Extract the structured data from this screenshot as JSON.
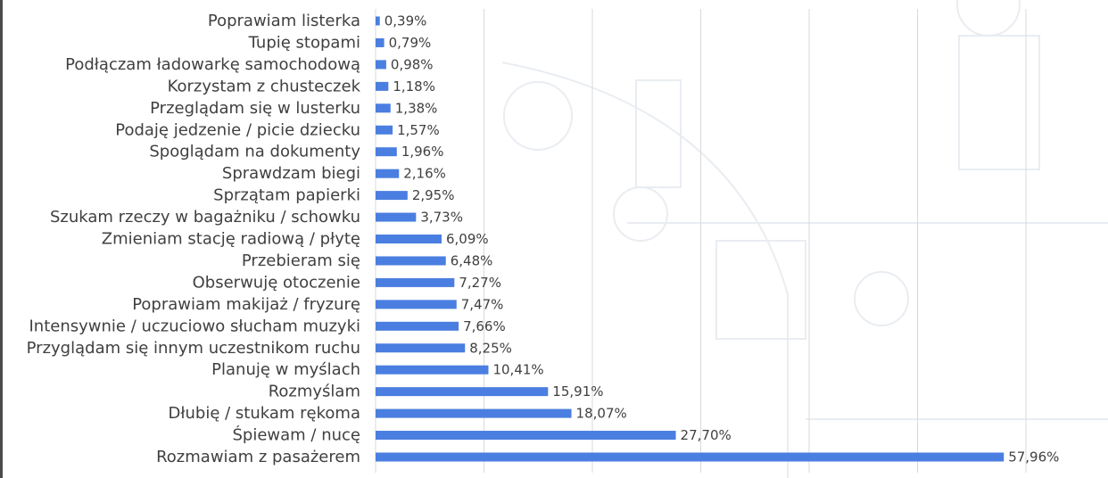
{
  "chart_data": {
    "type": "bar",
    "orientation": "horizontal",
    "categories": [
      "Poprawiam listerka",
      "Tupię stopami",
      "Podłączam ładowarkę samochodową",
      "Korzystam z chusteczek",
      "Przeglądam się w lusterku",
      "Podaję jedzenie / picie dziecku",
      "Spoglądam na dokumenty",
      "Sprawdzam biegi",
      "Sprzątam papierki",
      "Szukam rzeczy w bagażniku / schowku",
      "Zmieniam stację radiową / płytę",
      "Przebieram się",
      "Obserwuję otoczenie",
      "Poprawiam makijaż / fryzurę",
      "Intensywnie / uczuciowo słucham muzyki",
      "Przyglądam się innym uczestnikom ruchu",
      "Planuję w myślach",
      "Rozmyślam",
      "Dłubię / stukam rękoma",
      "Śpiewam / nucę",
      "Rozmawiam z pasażerem"
    ],
    "values": [
      0.39,
      0.79,
      0.98,
      1.18,
      1.38,
      1.57,
      1.96,
      2.16,
      2.95,
      3.73,
      6.09,
      6.48,
      7.27,
      7.47,
      7.66,
      8.25,
      10.41,
      15.91,
      18.07,
      27.7,
      57.96
    ],
    "value_labels": [
      "0,39%",
      "0,79%",
      "0,98%",
      "1,18%",
      "1,38%",
      "1,57%",
      "1,96%",
      "2,16%",
      "2,95%",
      "3,73%",
      "6,09%",
      "6,48%",
      "7,27%",
      "7,47%",
      "7,66%",
      "8,25%",
      "10,41%",
      "15,91%",
      "18,07%",
      "27,70%",
      "57,96%"
    ],
    "xlim": [
      0,
      68
    ],
    "gridlines": [
      0,
      10,
      20,
      30,
      40,
      50,
      60
    ],
    "grid": true,
    "legend": "none",
    "bar_color": "#4a7ee0",
    "title": "",
    "xlabel": "",
    "ylabel": ""
  }
}
